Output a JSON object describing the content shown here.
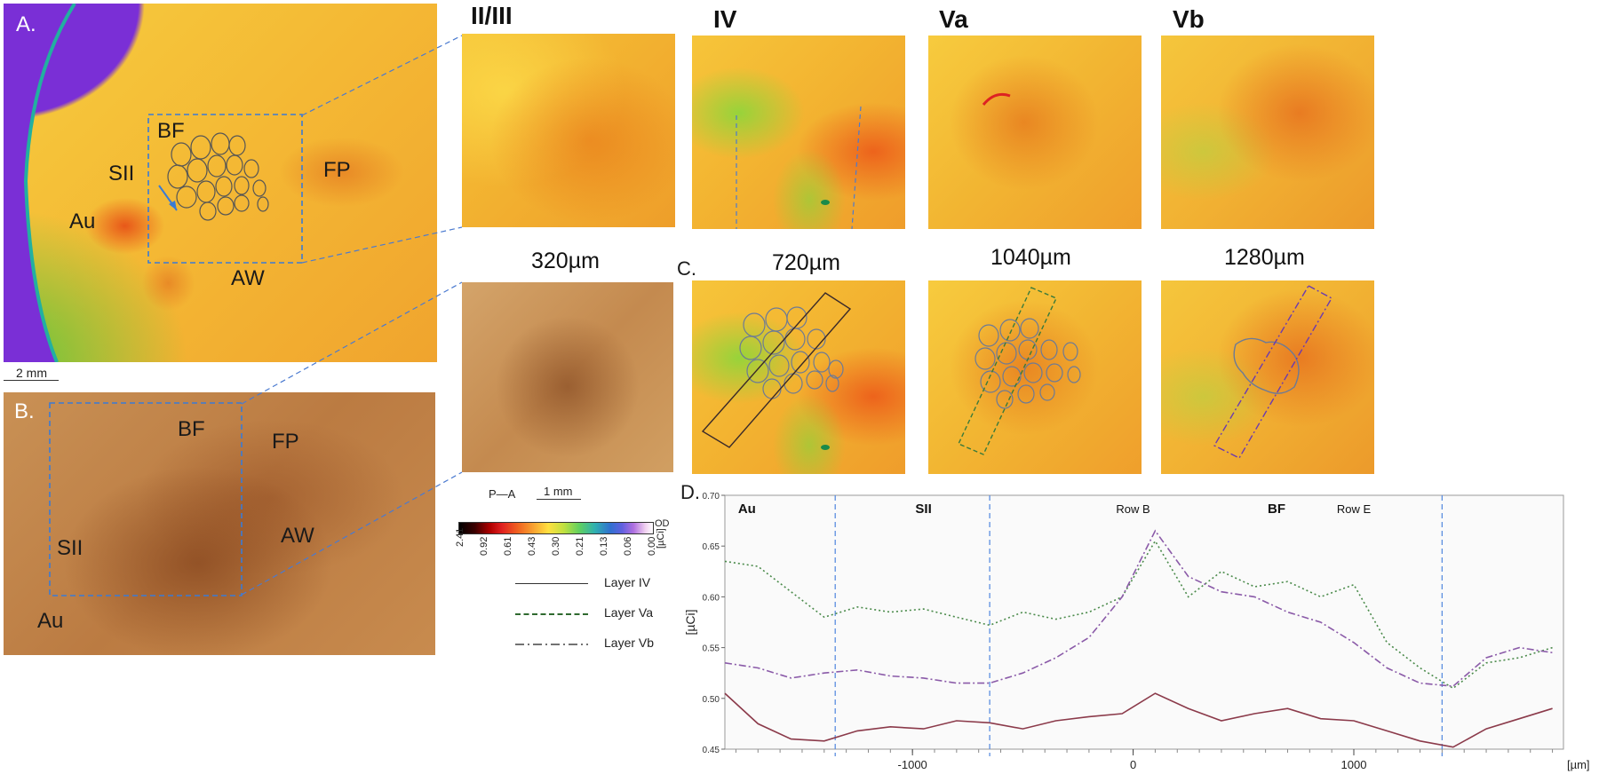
{
  "figure": {
    "panel_a": {
      "letter": "A.",
      "labels": {
        "bf": "BF",
        "sii": "SII",
        "au": "Au",
        "fp": "FP",
        "aw": "AW"
      },
      "scale": "2 mm"
    },
    "panel_b": {
      "letter": "B.",
      "labels": {
        "bf": "BF",
        "fp": "FP",
        "sii": "SII",
        "aw": "AW",
        "au": "Au"
      }
    },
    "layers": [
      "II/III",
      "IV",
      "Va",
      "Vb"
    ],
    "depths": [
      "320µm",
      "720µm",
      "1040µm",
      "1280µm"
    ],
    "panel_c": {
      "letter": "C."
    },
    "orientation": "P—A",
    "scale_1mm": "1 mm",
    "colorbar": {
      "ticks": [
        "2.41",
        "0.92",
        "0.61",
        "0.43",
        "0.30",
        "0.21",
        "0.13",
        "0.06",
        "0.00"
      ],
      "unit_od": "OD",
      "unit_uci": "[µCi]"
    },
    "legend": [
      {
        "label": "Layer IV",
        "style": "solid"
      },
      {
        "label": "Layer Va",
        "style": "dashed"
      },
      {
        "label": "Layer Vb",
        "style": "dashdot"
      }
    ]
  },
  "chart_data": {
    "type": "line",
    "title": "D.",
    "xlabel": "[µm]",
    "ylabel": "[µCi]",
    "xlim": [
      -1850,
      1950
    ],
    "ylim": [
      0.45,
      0.7
    ],
    "yticks": [
      "0.70",
      "0.65",
      "0.60",
      "0.55",
      "0.50",
      "0.45"
    ],
    "xticks": [
      {
        "v": -1000,
        "label": "-1000"
      },
      {
        "v": 0,
        "label": "0"
      },
      {
        "v": 1000,
        "label": "1000"
      }
    ],
    "region_lines": [
      -1350,
      -650,
      1400
    ],
    "region_labels": [
      {
        "x": -1750,
        "label": "Au",
        "bold": true
      },
      {
        "x": -950,
        "label": "SII",
        "bold": true
      },
      {
        "x": 650,
        "label": "BF",
        "bold": true
      },
      {
        "x": 0,
        "label": "Row B",
        "bold": false
      },
      {
        "x": 1000,
        "label": "Row E",
        "bold": false
      }
    ],
    "x": [
      -1850,
      -1700,
      -1550,
      -1400,
      -1250,
      -1100,
      -950,
      -800,
      -650,
      -500,
      -350,
      -200,
      -50,
      100,
      250,
      400,
      550,
      700,
      850,
      1000,
      1150,
      1300,
      1450,
      1600,
      1750,
      1900
    ],
    "series": [
      {
        "name": "Layer IV",
        "color": "#8b3a4a",
        "dash": "",
        "values": [
          0.505,
          0.475,
          0.46,
          0.458,
          0.468,
          0.472,
          0.47,
          0.478,
          0.476,
          0.47,
          0.478,
          0.482,
          0.485,
          0.505,
          0.49,
          0.478,
          0.485,
          0.49,
          0.48,
          0.478,
          0.468,
          0.458,
          0.452,
          0.47,
          0.48,
          0.49
        ]
      },
      {
        "name": "Layer Va",
        "color": "#4a8a4a",
        "dash": "2,3",
        "values": [
          0.635,
          0.63,
          0.605,
          0.58,
          0.59,
          0.585,
          0.588,
          0.58,
          0.572,
          0.585,
          0.578,
          0.585,
          0.6,
          0.655,
          0.6,
          0.625,
          0.61,
          0.615,
          0.6,
          0.612,
          0.555,
          0.53,
          0.51,
          0.535,
          0.54,
          0.55
        ]
      },
      {
        "name": "Layer Vb",
        "color": "#8a5aa8",
        "dash": "8,3,2,3",
        "values": [
          0.535,
          0.53,
          0.52,
          0.525,
          0.528,
          0.522,
          0.52,
          0.515,
          0.515,
          0.525,
          0.54,
          0.56,
          0.6,
          0.665,
          0.62,
          0.605,
          0.6,
          0.585,
          0.575,
          0.555,
          0.53,
          0.515,
          0.512,
          0.54,
          0.55,
          0.545
        ]
      }
    ]
  }
}
